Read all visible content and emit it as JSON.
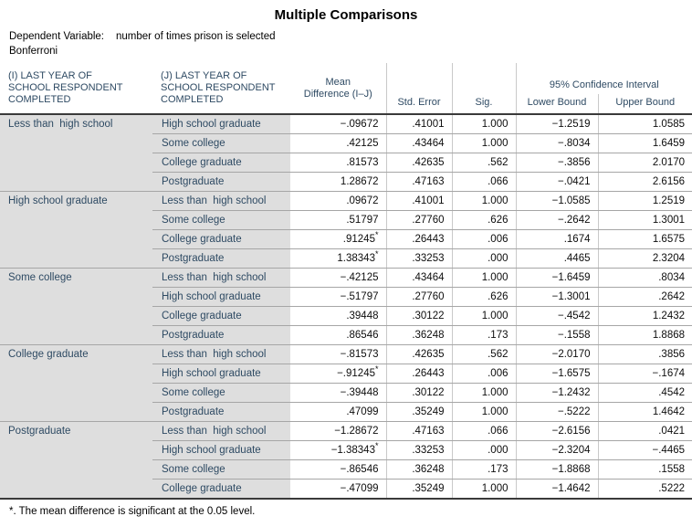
{
  "title": "Multiple Comparisons",
  "dependent_variable_label": "Dependent Variable:",
  "dependent_variable_value": "number of times prison is selected",
  "method": "Bonferroni",
  "footnote": "*. The mean difference is significant at the 0.05 level.",
  "colors": {
    "header_text": "#2e4a63",
    "label_cell_background": "#dedede",
    "row_line": "#a6a6a6",
    "column_line": "#c9c9c9",
    "strong_line": "#3a3a3a",
    "number_text": "#0d0d0d"
  },
  "table": {
    "headers": {
      "i": "(I) LAST YEAR OF SCHOOL RESPONDENT COMPLETED",
      "j": "(J) LAST YEAR OF SCHOOL RESPONDENT COMPLETED",
      "mean_diff": "Mean Difference (I–J)",
      "std_error": "Std. Error",
      "sig": "Sig.",
      "ci": "95% Confidence Interval",
      "lower": "Lower Bound",
      "upper": "Upper Bound"
    },
    "groups": [
      {
        "i_label": "Less than  high school",
        "rows": [
          {
            "j_label": "High school graduate",
            "mean_diff": "−.09672",
            "starred": false,
            "std_error": ".41001",
            "sig": "1.000",
            "lower": "−1.2519",
            "upper": "1.0585"
          },
          {
            "j_label": "Some college",
            "mean_diff": ".42125",
            "starred": false,
            "std_error": ".43464",
            "sig": "1.000",
            "lower": "−.8034",
            "upper": "1.6459"
          },
          {
            "j_label": "College graduate",
            "mean_diff": ".81573",
            "starred": false,
            "std_error": ".42635",
            "sig": ".562",
            "lower": "−.3856",
            "upper": "2.0170"
          },
          {
            "j_label": "Postgraduate",
            "mean_diff": "1.28672",
            "starred": false,
            "std_error": ".47163",
            "sig": ".066",
            "lower": "−.0421",
            "upper": "2.6156"
          }
        ]
      },
      {
        "i_label": "High school graduate",
        "rows": [
          {
            "j_label": "Less than  high school",
            "mean_diff": ".09672",
            "starred": false,
            "std_error": ".41001",
            "sig": "1.000",
            "lower": "−1.0585",
            "upper": "1.2519"
          },
          {
            "j_label": "Some college",
            "mean_diff": ".51797",
            "starred": false,
            "std_error": ".27760",
            "sig": ".626",
            "lower": "−.2642",
            "upper": "1.3001"
          },
          {
            "j_label": "College graduate",
            "mean_diff": ".91245",
            "starred": true,
            "std_error": ".26443",
            "sig": ".006",
            "lower": ".1674",
            "upper": "1.6575"
          },
          {
            "j_label": "Postgraduate",
            "mean_diff": "1.38343",
            "starred": true,
            "std_error": ".33253",
            "sig": ".000",
            "lower": ".4465",
            "upper": "2.3204"
          }
        ]
      },
      {
        "i_label": "Some college",
        "rows": [
          {
            "j_label": "Less than  high school",
            "mean_diff": "−.42125",
            "starred": false,
            "std_error": ".43464",
            "sig": "1.000",
            "lower": "−1.6459",
            "upper": ".8034"
          },
          {
            "j_label": "High school graduate",
            "mean_diff": "−.51797",
            "starred": false,
            "std_error": ".27760",
            "sig": ".626",
            "lower": "−1.3001",
            "upper": ".2642"
          },
          {
            "j_label": "College graduate",
            "mean_diff": ".39448",
            "starred": false,
            "std_error": ".30122",
            "sig": "1.000",
            "lower": "−.4542",
            "upper": "1.2432"
          },
          {
            "j_label": "Postgraduate",
            "mean_diff": ".86546",
            "starred": false,
            "std_error": ".36248",
            "sig": ".173",
            "lower": "−.1558",
            "upper": "1.8868"
          }
        ]
      },
      {
        "i_label": "College graduate",
        "rows": [
          {
            "j_label": "Less than  high school",
            "mean_diff": "−.81573",
            "starred": false,
            "std_error": ".42635",
            "sig": ".562",
            "lower": "−2.0170",
            "upper": ".3856"
          },
          {
            "j_label": "High school graduate",
            "mean_diff": "−.91245",
            "starred": true,
            "std_error": ".26443",
            "sig": ".006",
            "lower": "−1.6575",
            "upper": "−.1674"
          },
          {
            "j_label": "Some college",
            "mean_diff": "−.39448",
            "starred": false,
            "std_error": ".30122",
            "sig": "1.000",
            "lower": "−1.2432",
            "upper": ".4542"
          },
          {
            "j_label": "Postgraduate",
            "mean_diff": ".47099",
            "starred": false,
            "std_error": ".35249",
            "sig": "1.000",
            "lower": "−.5222",
            "upper": "1.4642"
          }
        ]
      },
      {
        "i_label": "Postgraduate",
        "rows": [
          {
            "j_label": "Less than  high school",
            "mean_diff": "−1.28672",
            "starred": false,
            "std_error": ".47163",
            "sig": ".066",
            "lower": "−2.6156",
            "upper": ".0421"
          },
          {
            "j_label": "High school graduate",
            "mean_diff": "−1.38343",
            "starred": true,
            "std_error": ".33253",
            "sig": ".000",
            "lower": "−2.3204",
            "upper": "−.4465"
          },
          {
            "j_label": "Some college",
            "mean_diff": "−.86546",
            "starred": false,
            "std_error": ".36248",
            "sig": ".173",
            "lower": "−1.8868",
            "upper": ".1558"
          },
          {
            "j_label": "College graduate",
            "mean_diff": "−.47099",
            "starred": false,
            "std_error": ".35249",
            "sig": "1.000",
            "lower": "−1.4642",
            "upper": ".5222"
          }
        ]
      }
    ]
  }
}
